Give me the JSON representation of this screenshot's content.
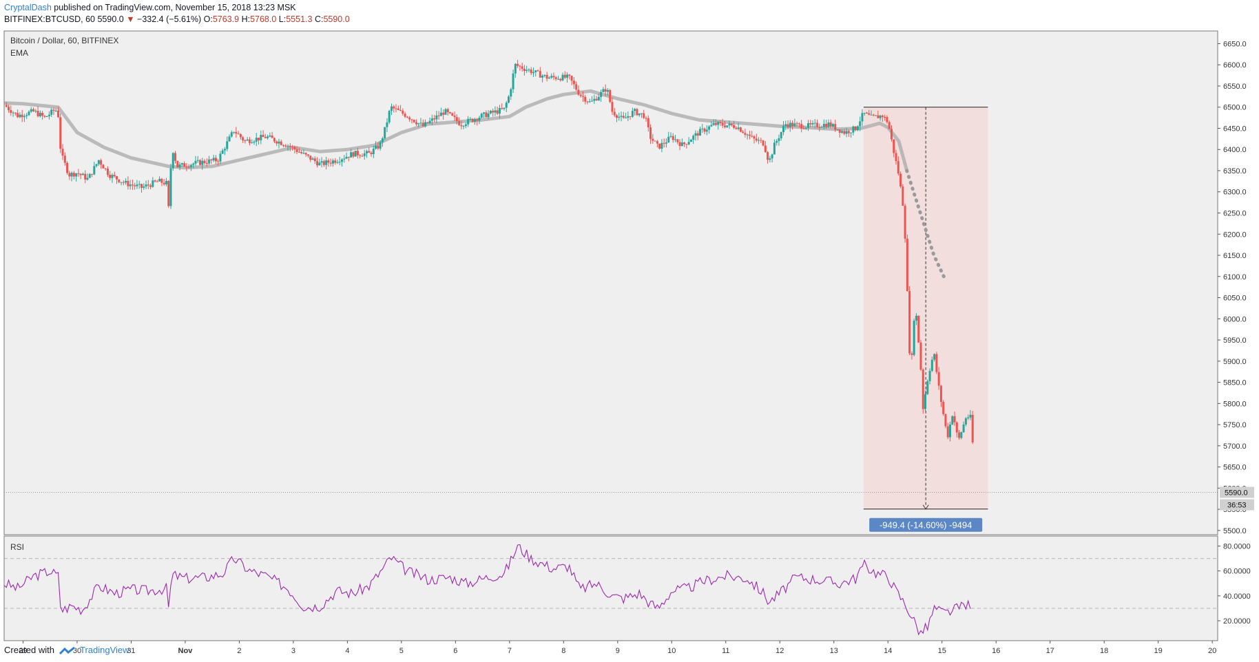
{
  "header": {
    "author": "CryptalDash",
    "published_text": "published on TradingView.com, November 15, 2018 13:23 MSK",
    "symbol": "BITFINEX:BTCUSD, 60",
    "last": "5590.0",
    "change": "−332.4 (−5.61%)",
    "open_label": "O:",
    "open": "5763.9",
    "high_label": "H:",
    "high": "5768.0",
    "low_label": "L:",
    "low": "5551.3",
    "close_label": "C:",
    "close": "5590.0"
  },
  "pane": {
    "title": "Bitcoin / Dollar, 60, BITFINEX",
    "indicator": "EMA",
    "rsi_label": "RSI"
  },
  "footer": {
    "created_with": "Created with",
    "brand": "TradingView"
  },
  "colors": {
    "bull": "#26a69a",
    "bear": "#ef5350",
    "ema": "#b0b0b0",
    "rsi": "#9c27b0",
    "range_fill": "#f3dada",
    "range_label_bg": "#5b87c5",
    "pane_bg": "#efefef"
  },
  "chart_data": [
    {
      "type": "candlestick",
      "title": "Bitcoin / Dollar, 60, BITFINEX",
      "x_tick_labels": [
        "29",
        "30",
        "31",
        "Nov",
        "2",
        "3",
        "4",
        "5",
        "6",
        "7",
        "8",
        "9",
        "10",
        "11",
        "12",
        "13",
        "14",
        "15",
        "16",
        "17",
        "18",
        "19",
        "20"
      ],
      "y_ticks": [
        "6650.0",
        "6600.0",
        "6550.0",
        "6500.0",
        "6450.0",
        "6400.0",
        "6350.0",
        "6300.0",
        "6250.0",
        "6200.0",
        "6150.0",
        "6100.0",
        "6050.0",
        "6000.0",
        "5950.0",
        "5900.0",
        "5850.0",
        "5800.0",
        "5750.0",
        "5700.0",
        "5650.0",
        "5600.0",
        "5550.0",
        "5500.0"
      ],
      "ylim": [
        5490,
        6680
      ],
      "x_range": [
        28.65,
        51.1
      ],
      "last_price_label": "5590.0",
      "countdown_label": "36:53",
      "price_path": [
        [
          28.65,
          6505
        ],
        [
          28.9,
          6480
        ],
        [
          29.2,
          6490
        ],
        [
          29.4,
          6475
        ],
        [
          29.6,
          6495
        ],
        [
          29.65,
          6480
        ],
        [
          29.7,
          6390
        ],
        [
          29.85,
          6340
        ],
        [
          30.0,
          6345
        ],
        [
          30.2,
          6330
        ],
        [
          30.4,
          6375
        ],
        [
          30.6,
          6340
        ],
        [
          30.9,
          6320
        ],
        [
          31.2,
          6310
        ],
        [
          31.5,
          6325
        ],
        [
          31.65,
          6320
        ],
        [
          31.7,
          6250
        ],
        [
          31.75,
          6410
        ],
        [
          31.85,
          6360
        ],
        [
          32.3,
          6370
        ],
        [
          32.6,
          6375
        ],
        [
          32.9,
          6445
        ],
        [
          33.1,
          6420
        ],
        [
          33.5,
          6430
        ],
        [
          33.9,
          6410
        ],
        [
          34.1,
          6395
        ],
        [
          34.5,
          6365
        ],
        [
          34.8,
          6375
        ],
        [
          35.1,
          6390
        ],
        [
          35.4,
          6390
        ],
        [
          35.6,
          6410
        ],
        [
          35.7,
          6450
        ],
        [
          35.8,
          6500
        ],
        [
          36.1,
          6480
        ],
        [
          36.4,
          6455
        ],
        [
          36.8,
          6490
        ],
        [
          37.1,
          6460
        ],
        [
          37.5,
          6480
        ],
        [
          37.9,
          6495
        ],
        [
          38.0,
          6530
        ],
        [
          38.1,
          6600
        ],
        [
          38.3,
          6590
        ],
        [
          38.7,
          6570
        ],
        [
          39.1,
          6570
        ],
        [
          39.3,
          6530
        ],
        [
          39.5,
          6510
        ],
        [
          39.8,
          6545
        ],
        [
          39.9,
          6490
        ],
        [
          40.1,
          6470
        ],
        [
          40.3,
          6490
        ],
        [
          40.5,
          6480
        ],
        [
          40.6,
          6430
        ],
        [
          40.75,
          6405
        ],
        [
          41.0,
          6430
        ],
        [
          41.2,
          6410
        ],
        [
          41.5,
          6440
        ],
        [
          41.8,
          6460
        ],
        [
          42.2,
          6455
        ],
        [
          42.5,
          6425
        ],
        [
          42.7,
          6415
        ],
        [
          42.8,
          6370
        ],
        [
          42.9,
          6410
        ],
        [
          43.1,
          6460
        ],
        [
          43.5,
          6455
        ],
        [
          43.9,
          6460
        ],
        [
          44.2,
          6440
        ],
        [
          44.4,
          6450
        ],
        [
          44.55,
          6485
        ],
        [
          44.7,
          6475
        ],
        [
          44.9,
          6480
        ],
        [
          45.0,
          6465
        ],
        [
          45.1,
          6400
        ],
        [
          45.2,
          6340
        ],
        [
          45.3,
          6250
        ],
        [
          45.42,
          5860
        ],
        [
          45.5,
          6040
        ],
        [
          45.6,
          5900
        ],
        [
          45.65,
          5790
        ],
        [
          45.75,
          5870
        ],
        [
          45.85,
          5920
        ],
        [
          45.95,
          5830
        ],
        [
          46.1,
          5720
        ],
        [
          46.2,
          5780
        ],
        [
          46.3,
          5710
        ],
        [
          46.45,
          5770
        ],
        [
          46.55,
          5765
        ],
        [
          46.6,
          5590
        ]
      ],
      "ema_path": [
        [
          28.65,
          6510
        ],
        [
          29.0,
          6508
        ],
        [
          29.65,
          6500
        ],
        [
          30.0,
          6440
        ],
        [
          30.5,
          6405
        ],
        [
          31.0,
          6380
        ],
        [
          31.7,
          6360
        ],
        [
          32.0,
          6357
        ],
        [
          32.5,
          6360
        ],
        [
          33.0,
          6375
        ],
        [
          33.5,
          6390
        ],
        [
          34.0,
          6405
        ],
        [
          34.5,
          6395
        ],
        [
          35.0,
          6400
        ],
        [
          35.5,
          6410
        ],
        [
          36.0,
          6440
        ],
        [
          36.5,
          6460
        ],
        [
          37.0,
          6465
        ],
        [
          37.5,
          6470
        ],
        [
          38.0,
          6478
        ],
        [
          38.3,
          6500
        ],
        [
          38.7,
          6520
        ],
        [
          39.0,
          6530
        ],
        [
          39.5,
          6538
        ],
        [
          40.0,
          6520
        ],
        [
          40.5,
          6505
        ],
        [
          41.0,
          6485
        ],
        [
          41.5,
          6470
        ],
        [
          42.0,
          6465
        ],
        [
          42.5,
          6460
        ],
        [
          43.0,
          6455
        ],
        [
          43.5,
          6452
        ],
        [
          44.0,
          6448
        ],
        [
          44.5,
          6450
        ],
        [
          44.85,
          6462
        ],
        [
          45.0,
          6452
        ],
        [
          45.2,
          6420
        ],
        [
          45.35,
          6350
        ]
      ],
      "ema_projection": [
        [
          45.35,
          6350
        ],
        [
          45.6,
          6250
        ],
        [
          45.85,
          6150
        ],
        [
          46.07,
          6090
        ]
      ],
      "measure": {
        "x_start": 44.55,
        "x_end": 46.85,
        "y_top": 6500,
        "y_bottom": 5550.6,
        "label": "-949.4 (-14.60%) -9494"
      }
    },
    {
      "type": "line",
      "title": "RSI",
      "y_ticks": [
        "80.0000",
        "60.0000",
        "40.0000",
        "20.0000"
      ],
      "ylim": [
        4,
        88
      ],
      "bands": [
        70,
        30
      ],
      "rsi_path": [
        [
          28.65,
          50
        ],
        [
          28.9,
          46
        ],
        [
          29.2,
          56
        ],
        [
          29.5,
          60
        ],
        [
          29.65,
          56
        ],
        [
          29.7,
          28
        ],
        [
          29.9,
          32
        ],
        [
          30.1,
          29
        ],
        [
          30.4,
          48
        ],
        [
          30.7,
          42
        ],
        [
          31.0,
          45
        ],
        [
          31.3,
          44
        ],
        [
          31.65,
          46
        ],
        [
          31.7,
          28
        ],
        [
          31.75,
          57
        ],
        [
          32.0,
          54
        ],
        [
          32.4,
          55
        ],
        [
          32.7,
          58
        ],
        [
          32.9,
          70
        ],
        [
          33.2,
          60
        ],
        [
          33.5,
          56
        ],
        [
          33.9,
          46
        ],
        [
          34.2,
          31
        ],
        [
          34.5,
          32
        ],
        [
          34.8,
          44
        ],
        [
          35.1,
          42
        ],
        [
          35.4,
          48
        ],
        [
          35.7,
          64
        ],
        [
          35.8,
          71
        ],
        [
          36.1,
          60
        ],
        [
          36.5,
          53
        ],
        [
          36.9,
          55
        ],
        [
          37.2,
          50
        ],
        [
          37.6,
          55
        ],
        [
          37.9,
          58
        ],
        [
          38.0,
          66
        ],
        [
          38.15,
          80
        ],
        [
          38.4,
          70
        ],
        [
          38.8,
          62
        ],
        [
          39.1,
          64
        ],
        [
          39.3,
          45
        ],
        [
          39.6,
          50
        ],
        [
          39.9,
          40
        ],
        [
          40.1,
          38
        ],
        [
          40.4,
          42
        ],
        [
          40.6,
          34
        ],
        [
          40.75,
          30
        ],
        [
          41.0,
          44
        ],
        [
          41.3,
          46
        ],
        [
          41.6,
          52
        ],
        [
          42.0,
          56
        ],
        [
          42.4,
          54
        ],
        [
          42.7,
          42
        ],
        [
          42.8,
          35
        ],
        [
          43.0,
          42
        ],
        [
          43.3,
          55
        ],
        [
          43.7,
          53
        ],
        [
          44.1,
          50
        ],
        [
          44.4,
          54
        ],
        [
          44.55,
          65
        ],
        [
          44.8,
          58
        ],
        [
          45.0,
          56
        ],
        [
          45.15,
          44
        ],
        [
          45.35,
          31
        ],
        [
          45.6,
          10
        ],
        [
          45.75,
          16
        ],
        [
          45.85,
          30
        ],
        [
          46.05,
          26
        ],
        [
          46.3,
          30
        ],
        [
          46.45,
          34
        ],
        [
          46.55,
          28
        ]
      ]
    }
  ]
}
